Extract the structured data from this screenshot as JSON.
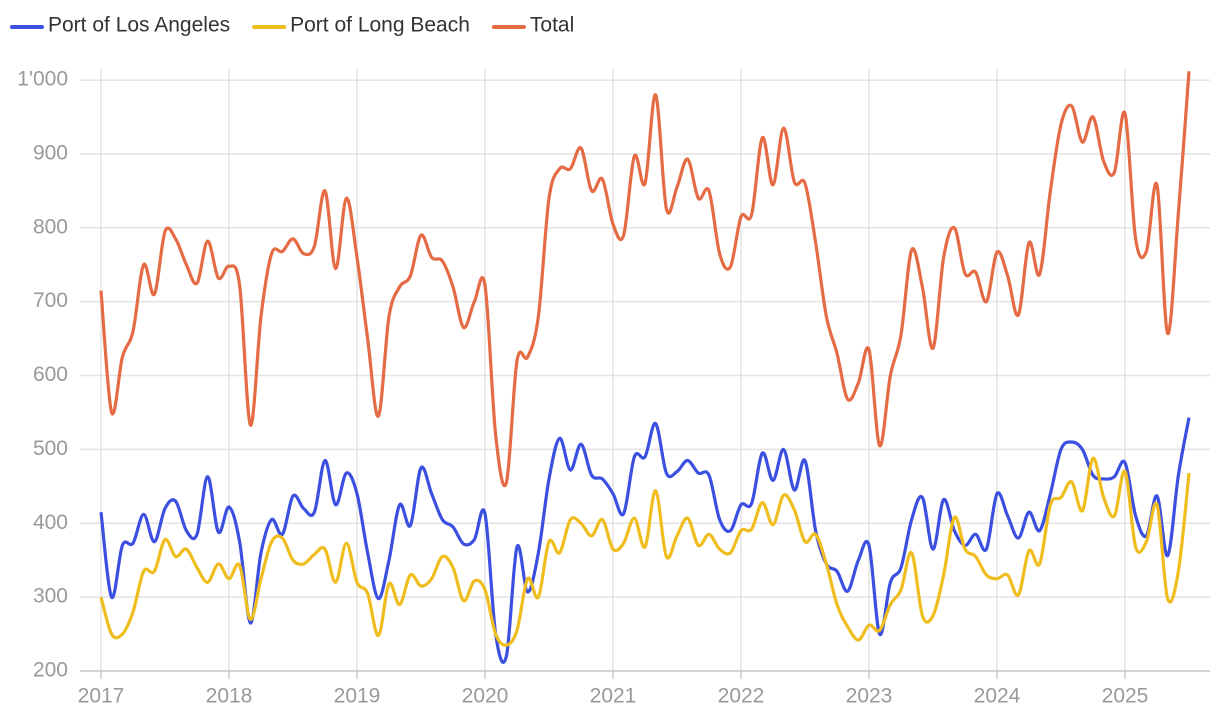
{
  "chart_data": {
    "type": "line",
    "x": [
      2017,
      2017.083,
      2017.167,
      2017.25,
      2017.333,
      2017.417,
      2017.5,
      2017.583,
      2017.667,
      2017.75,
      2017.833,
      2017.917,
      2018,
      2018.083,
      2018.167,
      2018.25,
      2018.333,
      2018.417,
      2018.5,
      2018.583,
      2018.667,
      2018.75,
      2018.833,
      2018.917,
      2019,
      2019.083,
      2019.167,
      2019.25,
      2019.333,
      2019.417,
      2019.5,
      2019.583,
      2019.667,
      2019.75,
      2019.833,
      2019.917,
      2020,
      2020.083,
      2020.167,
      2020.25,
      2020.333,
      2020.417,
      2020.5,
      2020.583,
      2020.667,
      2020.75,
      2020.833,
      2020.917,
      2021,
      2021.083,
      2021.167,
      2021.25,
      2021.333,
      2021.417,
      2021.5,
      2021.583,
      2021.667,
      2021.75,
      2021.833,
      2021.917,
      2022,
      2022.083,
      2022.167,
      2022.25,
      2022.333,
      2022.417,
      2022.5,
      2022.583,
      2022.667,
      2022.75,
      2022.833,
      2022.917,
      2023,
      2023.083,
      2023.167,
      2023.25,
      2023.333,
      2023.417,
      2023.5,
      2023.583,
      2023.667,
      2023.75,
      2023.833,
      2023.917,
      2024,
      2024.083,
      2024.167,
      2024.25,
      2024.333,
      2024.417,
      2024.5,
      2024.583,
      2024.667,
      2024.75,
      2024.833,
      2024.917,
      2025,
      2025.083,
      2025.167,
      2025.25,
      2025.333,
      2025.417,
      2025.5
    ],
    "series": [
      {
        "name": "Port of Los Angeles",
        "color": "#3b4fe0",
        "values": [
          415,
          300,
          370,
          373,
          412,
          375,
          420,
          430,
          390,
          385,
          463,
          388,
          422,
          375,
          265,
          360,
          405,
          385,
          437,
          420,
          415,
          485,
          425,
          468,
          440,
          360,
          298,
          350,
          425,
          397,
          475,
          440,
          405,
          395,
          372,
          378,
          413,
          250,
          220,
          368,
          307,
          360,
          460,
          515,
          472,
          507,
          465,
          460,
          440,
          413,
          490,
          490,
          535,
          468,
          470,
          485,
          468,
          465,
          405,
          390,
          425,
          427,
          495,
          458,
          500,
          445,
          485,
          390,
          345,
          335,
          308,
          350,
          370,
          250,
          320,
          340,
          405,
          435,
          365,
          432,
          390,
          370,
          385,
          365,
          440,
          410,
          380,
          415,
          390,
          440,
          500,
          510,
          500,
          465,
          460,
          463,
          482,
          410,
          383,
          437,
          356,
          465,
          543
        ]
      },
      {
        "name": "Port of Long Beach",
        "color": "#f0bd1e",
        "values": [
          300,
          250,
          250,
          280,
          335,
          335,
          378,
          355,
          365,
          340,
          320,
          345,
          325,
          343,
          270,
          325,
          375,
          380,
          350,
          345,
          358,
          365,
          320,
          373,
          320,
          305,
          248,
          318,
          290,
          330,
          315,
          325,
          355,
          340,
          295,
          322,
          310,
          250,
          235,
          255,
          325,
          300,
          375,
          360,
          405,
          400,
          383,
          405,
          365,
          373,
          407,
          368,
          444,
          355,
          383,
          407,
          370,
          385,
          365,
          360,
          390,
          392,
          428,
          398,
          438,
          418,
          375,
          385,
          345,
          290,
          260,
          242,
          262,
          255,
          290,
          310,
          360,
          275,
          275,
          330,
          408,
          365,
          355,
          330,
          325,
          330,
          303,
          363,
          345,
          425,
          435,
          456,
          417,
          488,
          435,
          410,
          470,
          368,
          375,
          425,
          298,
          335,
          468
        ]
      },
      {
        "name": "Total",
        "color": "#e56b45",
        "values": [
          715,
          550,
          625,
          660,
          750,
          710,
          795,
          785,
          750,
          725,
          782,
          732,
          748,
          722,
          533,
          680,
          765,
          768,
          785,
          765,
          775,
          850,
          745,
          840,
          760,
          650,
          545,
          680,
          720,
          735,
          790,
          760,
          755,
          720,
          665,
          700,
          722,
          520,
          455,
          620,
          625,
          680,
          840,
          880,
          880,
          908,
          850,
          866,
          805,
          790,
          897,
          860,
          980,
          826,
          855,
          893,
          840,
          850,
          765,
          747,
          815,
          818,
          922,
          858,
          935,
          862,
          860,
          780,
          680,
          630,
          568,
          590,
          635,
          505,
          600,
          655,
          770,
          720,
          637,
          760,
          800,
          738,
          740,
          700,
          767,
          735,
          682,
          780,
          737,
          850,
          940,
          965,
          916,
          950,
          890,
          875,
          955,
          785,
          768,
          858,
          657,
          820,
          1012
        ]
      }
    ],
    "xlim": [
      2017,
      2025.5
    ],
    "xticks": [
      2017,
      2018,
      2019,
      2020,
      2021,
      2022,
      2023,
      2024,
      2025
    ],
    "ylim": [
      200,
      1015
    ],
    "yticks": [
      200,
      300,
      400,
      500,
      600,
      700,
      800,
      900,
      {
        "value": 1000,
        "label": "1'000"
      }
    ],
    "grid": true,
    "legend": "top-left"
  }
}
